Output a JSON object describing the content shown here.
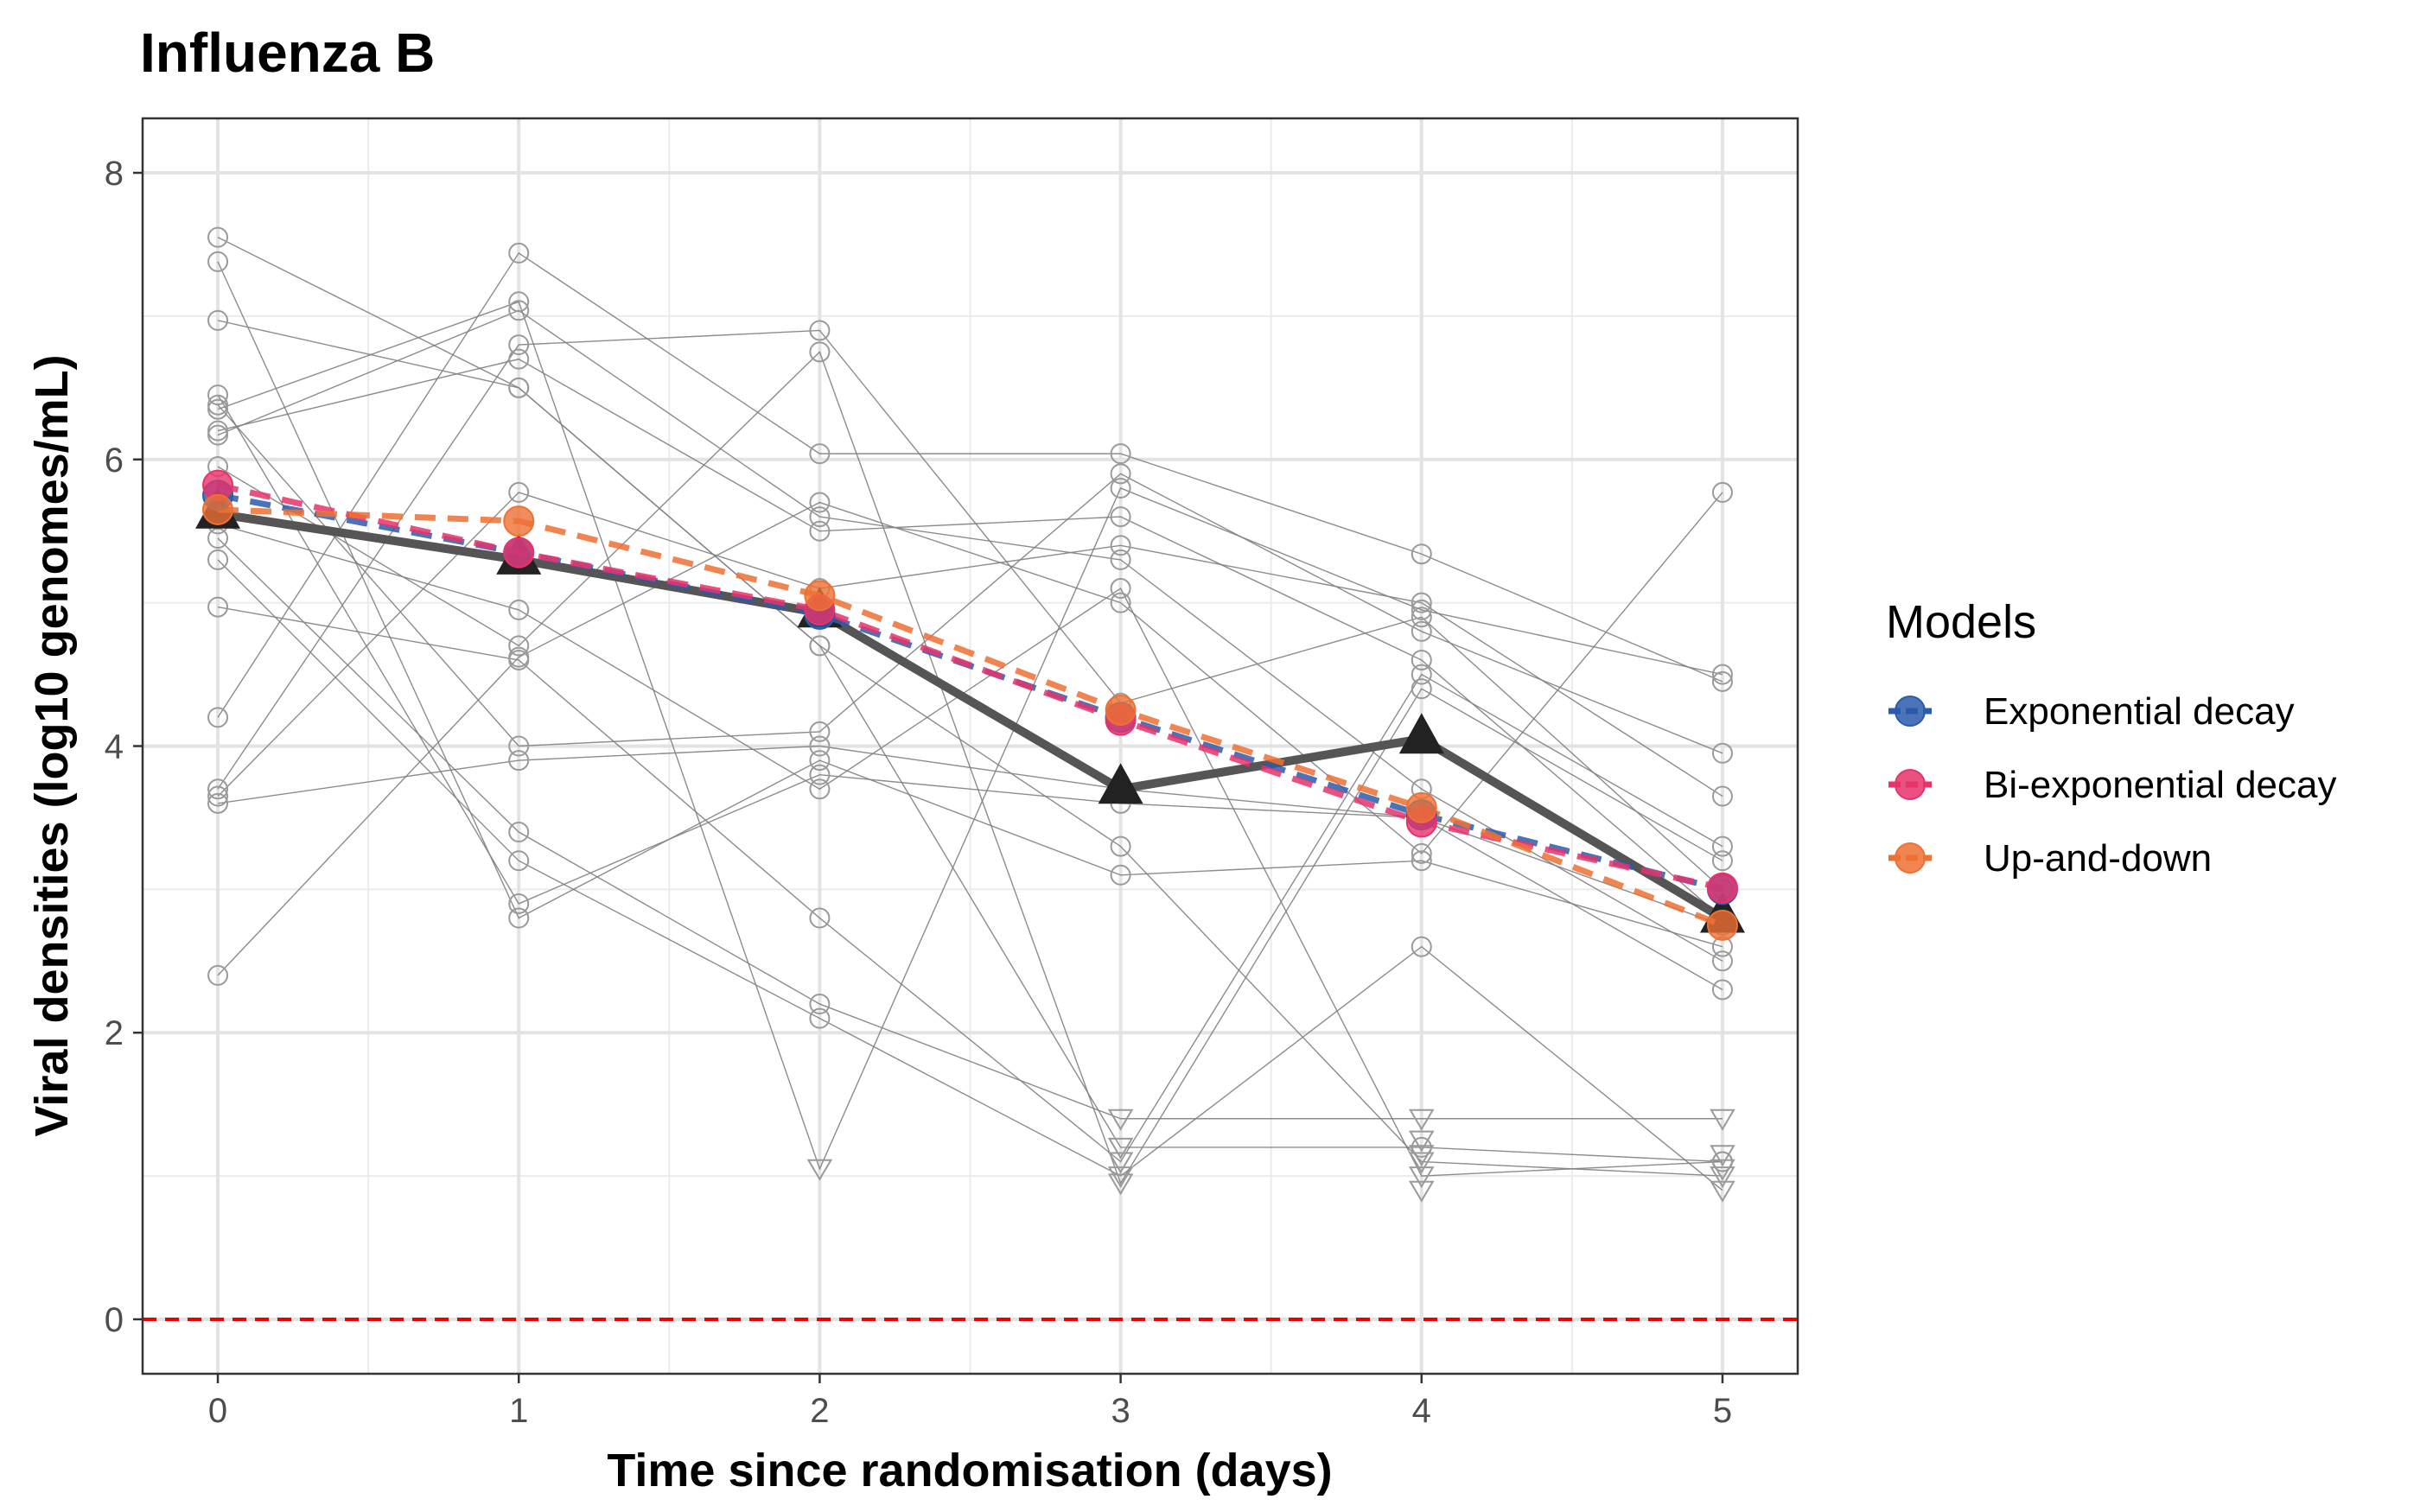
{
  "chart_data": {
    "type": "line",
    "title": "Influenza B",
    "xlabel": "Time since randomisation (days)",
    "ylabel": "Viral densities (log10 genomes/mL)",
    "xlim": [
      -0.25,
      5.25
    ],
    "ylim": [
      -0.38,
      8.38
    ],
    "x_ticks": [
      0,
      1,
      2,
      3,
      4,
      5
    ],
    "y_ticks": [
      0,
      2,
      4,
      6,
      8
    ],
    "grid": true,
    "legend_position": "right",
    "reference_line": {
      "y": 0,
      "style": "dashed",
      "color": "#ee0000"
    },
    "individual_observations": {
      "color": "#808080",
      "detected_marker": "open-circle",
      "censored_marker": "open-triangle-down",
      "trajectories": [
        [
          [
            0,
            7.55
          ],
          [
            1,
            6.5
          ],
          [
            2,
            4.7
          ],
          [
            3,
            3.3
          ],
          [
            4,
            1.1
          ],
          [
            5,
            1.0
          ]
        ],
        [
          [
            0,
            7.38
          ],
          [
            1,
            2.8
          ],
          [
            2,
            3.9
          ],
          [
            3,
            3.1
          ],
          [
            4,
            3.2
          ],
          [
            5,
            2.6
          ]
        ],
        [
          [
            0,
            6.97
          ],
          [
            1,
            6.5
          ],
          [
            2,
            4.7
          ],
          [
            3,
            1.2
          ],
          [
            4,
            1.2
          ],
          [
            5,
            1.1
          ]
        ],
        [
          [
            0,
            6.45
          ],
          [
            1,
            2.9
          ],
          [
            2,
            3.8
          ],
          [
            3,
            3.6
          ],
          [
            4,
            3.5
          ],
          [
            5,
            2.3
          ]
        ],
        [
          [
            0,
            6.38
          ],
          [
            1,
            4.0
          ],
          [
            2,
            4.1
          ],
          [
            3,
            5.9
          ],
          [
            4,
            4.8
          ],
          [
            5,
            3.95
          ]
        ],
        [
          [
            0,
            6.2
          ],
          [
            1,
            6.7
          ],
          [
            2,
            5.5
          ],
          [
            3,
            5.6
          ],
          [
            4,
            4.6
          ],
          [
            5,
            2.8
          ]
        ],
        [
          [
            0,
            6.17
          ],
          [
            1,
            7.04
          ],
          [
            2,
            5.6
          ],
          [
            3,
            5.3
          ],
          [
            4,
            3.7
          ],
          [
            5,
            2.5
          ]
        ],
        [
          [
            0,
            5.55
          ],
          [
            1,
            4.95
          ],
          [
            2,
            3.7
          ],
          [
            3,
            5.1
          ],
          [
            4,
            1.0
          ],
          [
            5,
            1.1
          ]
        ],
        [
          [
            0,
            5.45
          ],
          [
            1,
            3.4
          ],
          [
            2,
            2.2
          ],
          [
            3,
            1.4
          ],
          [
            4,
            1.4
          ],
          [
            5,
            1.4
          ]
        ],
        [
          [
            0,
            5.3
          ],
          [
            1,
            3.2
          ],
          [
            2,
            2.1
          ],
          [
            3,
            1.0
          ],
          [
            4,
            2.6
          ],
          [
            5,
            0.9
          ]
        ],
        [
          [
            0,
            4.97
          ],
          [
            1,
            4.6
          ],
          [
            2,
            2.8
          ],
          [
            3,
            1.1
          ],
          [
            4,
            4.5
          ],
          [
            5,
            3.3
          ]
        ],
        [
          [
            0,
            4.2
          ],
          [
            1,
            7.44
          ],
          [
            2,
            6.04
          ],
          [
            3,
            6.04
          ],
          [
            4,
            5.34
          ],
          [
            5,
            4.45
          ]
        ],
        [
          [
            0,
            3.7
          ],
          [
            1,
            6.8
          ],
          [
            2,
            6.9
          ],
          [
            3,
            4.3
          ],
          [
            4,
            4.9
          ],
          [
            5,
            3.0
          ]
        ],
        [
          [
            0,
            3.6
          ],
          [
            1,
            3.9
          ],
          [
            2,
            4.0
          ],
          [
            3,
            3.7
          ],
          [
            4,
            3.5
          ],
          [
            5,
            2.75
          ]
        ],
        [
          [
            0,
            3.65
          ],
          [
            1,
            5.77
          ],
          [
            2,
            5.1
          ],
          [
            3,
            5.4
          ],
          [
            4,
            5.0
          ],
          [
            5,
            3.65
          ]
        ],
        [
          [
            0,
            2.4
          ],
          [
            1,
            4.62
          ],
          [
            2,
            5.7
          ],
          [
            3,
            5.0
          ],
          [
            4,
            3.25
          ],
          [
            5,
            5.77
          ]
        ],
        [
          [
            0,
            6.35
          ],
          [
            1,
            7.1
          ],
          [
            2,
            1.05
          ],
          [
            3,
            5.8
          ],
          [
            4,
            4.95
          ],
          [
            5,
            4.5
          ]
        ],
        [
          [
            0,
            5.95
          ],
          [
            1,
            4.7
          ],
          [
            2,
            6.75
          ],
          [
            3,
            0.95
          ],
          [
            4,
            4.4
          ],
          [
            5,
            3.2
          ]
        ]
      ],
      "censored_points": [
        [
          2,
          1.05
        ],
        [
          3,
          1.4
        ],
        [
          3,
          1.2
        ],
        [
          3,
          1.1
        ],
        [
          3,
          1.0
        ],
        [
          3,
          0.95
        ],
        [
          4,
          1.4
        ],
        [
          4,
          1.25
        ],
        [
          4,
          1.15
        ],
        [
          4,
          1.1
        ],
        [
          4,
          1.0
        ],
        [
          4,
          0.9
        ],
        [
          5,
          1.4
        ],
        [
          5,
          1.15
        ],
        [
          5,
          1.05
        ],
        [
          5,
          1.0
        ],
        [
          5,
          0.9
        ]
      ]
    },
    "observed_mean": {
      "color": "#555555",
      "marker": "filled-triangle",
      "x": [
        0,
        1,
        2,
        3,
        4,
        5
      ],
      "y": [
        5.62,
        5.3,
        4.93,
        3.7,
        4.05,
        2.8
      ]
    },
    "legend_title": "Models",
    "series": [
      {
        "name": "Exponential decay",
        "color": "#2b5bab",
        "x": [
          0,
          1,
          2,
          3,
          4,
          5
        ],
        "y": [
          5.75,
          5.35,
          4.92,
          4.2,
          3.52,
          3.0
        ]
      },
      {
        "name": "Bi-exponential decay",
        "color": "#e8326a",
        "x": [
          0,
          1,
          2,
          3,
          4,
          5
        ],
        "y": [
          5.82,
          5.35,
          4.95,
          4.18,
          3.47,
          3.01
        ]
      },
      {
        "name": "Up-and-down",
        "color": "#ee7033",
        "x": [
          0,
          1,
          2,
          3,
          4,
          5
        ],
        "y": [
          5.65,
          5.57,
          5.05,
          4.25,
          3.57,
          2.75
        ]
      }
    ]
  }
}
